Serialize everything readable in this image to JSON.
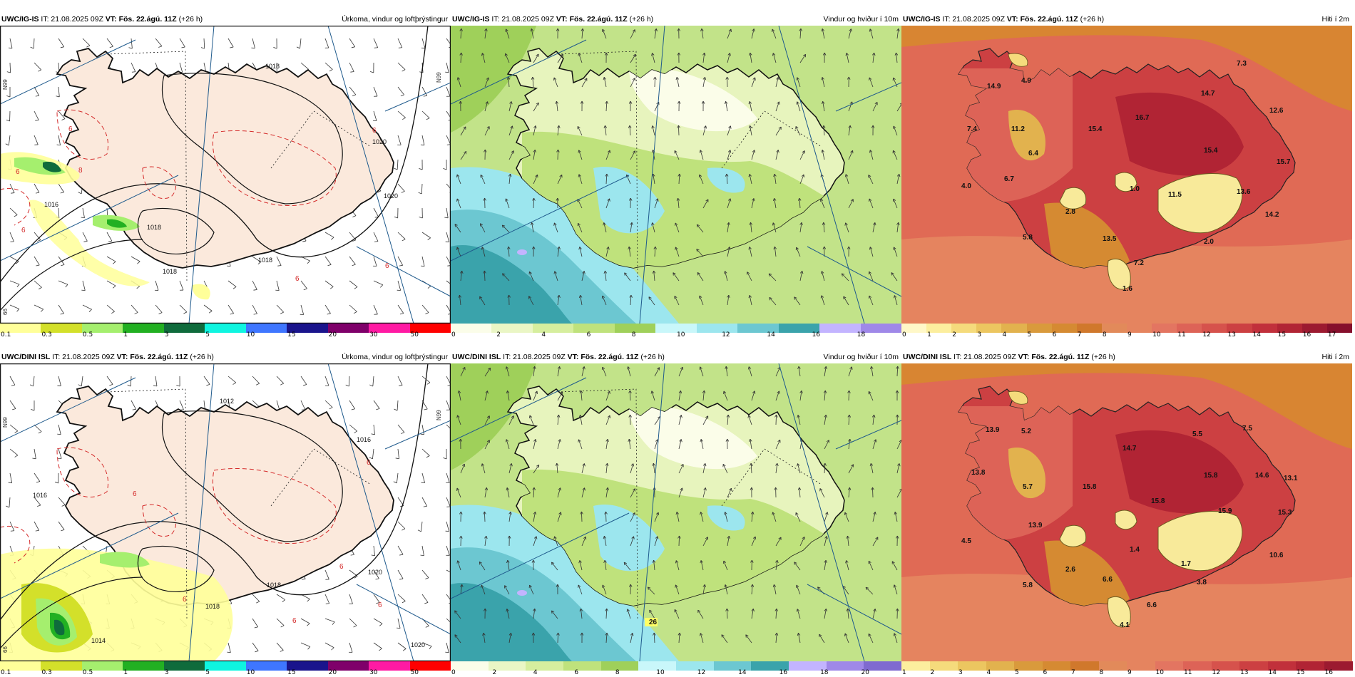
{
  "panels": [
    {
      "id": "p1",
      "type": "precip",
      "model": "UWC/IG-IS",
      "it_label": "IT:",
      "it_value": "21.08.2025 09Z",
      "vt_label": "VT:",
      "vt_value": "Fös. 22.ágú. 11Z",
      "lead": "(+26 h)",
      "field_title": "Úrkoma, vindur og loftþrýstingur",
      "colorbar": {
        "ticks": [
          "0.1",
          "0.3",
          "0.5",
          "1",
          "3",
          "5",
          "10",
          "15",
          "20",
          "30",
          "50"
        ],
        "colors": [
          "#ffff99",
          "#d3e02a",
          "#a5ef6e",
          "#22b022",
          "#0f6b3c",
          "#0ff5e0",
          "#3f76ff",
          "#1a148c",
          "#7f006a",
          "#ff1aa3",
          "#ff0000"
        ]
      },
      "isobar_labels": [
        "1018",
        "1016",
        "1018",
        "1018",
        "1018",
        "1020",
        "1020"
      ],
      "contour_labels": [
        "6",
        "6",
        "6",
        "8",
        "6",
        "6",
        "6"
      ],
      "lat_labels": [
        "N99",
        "N99",
        "66"
      ]
    },
    {
      "id": "p2",
      "type": "wind",
      "model": "UWC/IG-IS",
      "it_label": "IT:",
      "it_value": "21.08.2025 09Z",
      "vt_label": "VT:",
      "vt_value": "Fös. 22.ágú. 11Z",
      "lead": "(+26 h)",
      "field_title": "Vindur og hviður í 10m",
      "colorbar": {
        "ticks": [
          "0",
          "2",
          "4",
          "6",
          "8",
          "10",
          "12",
          "14",
          "16",
          "18"
        ],
        "colors": [
          "#fbfde9",
          "#eaf6c5",
          "#d6ee9e",
          "#bfe27c",
          "#9fd05a",
          "#c9f7fa",
          "#9ce6ee",
          "#6cc7d1",
          "#3aa3ab",
          "#c3b4ff",
          "#9f88e8"
        ]
      }
    },
    {
      "id": "p3",
      "type": "temp",
      "model": "UWC/IG-IS",
      "it_label": "IT:",
      "it_value": "21.08.2025 09Z",
      "vt_label": "VT:",
      "vt_value": "Fös. 22.ágú. 11Z",
      "lead": "(+26 h)",
      "field_title": "Hiti í 2m",
      "colorbar": {
        "ticks": [
          "0",
          "1",
          "2",
          "3",
          "4",
          "5",
          "6",
          "7",
          "8",
          "9",
          "10",
          "11",
          "12",
          "13",
          "14",
          "15",
          "16",
          "17"
        ],
        "colors": [
          "#fff8c8",
          "#fcee9e",
          "#f5db7c",
          "#ecc660",
          "#e2b24e",
          "#d99a3c",
          "#d58a32",
          "#d0782c",
          "#e28a5a",
          "#e5845f",
          "#e37561",
          "#dd6357",
          "#d6524c",
          "#cc4042",
          "#c1303b",
          "#b12434",
          "#9c1a30",
          "#860f2c"
        ]
      },
      "values": [
        "14.9",
        "4.9",
        "7.4",
        "11.2",
        "4.0",
        "6.7",
        "6.4",
        "15.4",
        "16.7",
        "14.7",
        "7.3",
        "12.6",
        "15.4",
        "15.7",
        "1.0",
        "11.5",
        "13.6",
        "2.8",
        "14.2",
        "5.8",
        "13.5",
        "2.0",
        "7.2",
        "1.6"
      ]
    },
    {
      "id": "p4",
      "type": "precip",
      "model": "UWC/DINI ISL",
      "it_label": "IT:",
      "it_value": "21.08.2025 09Z",
      "vt_label": "VT:",
      "vt_value": "Fös. 22.ágú. 11Z",
      "lead": "(+26 h)",
      "field_title": "Úrkoma, vindur og loftþrýstingur",
      "colorbar": {
        "ticks": [
          "0.1",
          "0.3",
          "0.5",
          "1",
          "3",
          "5",
          "10",
          "15",
          "20",
          "30",
          "50"
        ],
        "colors": [
          "#ffff99",
          "#d3e02a",
          "#a5ef6e",
          "#22b022",
          "#0f6b3c",
          "#0ff5e0",
          "#3f76ff",
          "#1a148c",
          "#7f006a",
          "#ff1aa3",
          "#ff0000"
        ]
      },
      "isobar_labels": [
        "1012",
        "1016",
        "1016",
        "1018",
        "1018",
        "1020",
        "1014",
        "1020"
      ],
      "contour_labels": [
        "6",
        "6",
        "6",
        "6",
        "6",
        "6"
      ],
      "lat_labels": [
        "N99",
        "N99",
        "66"
      ]
    },
    {
      "id": "p5",
      "type": "wind",
      "model": "UWC/DINI ISL",
      "it_label": "IT:",
      "it_value": "21.08.2025 09Z",
      "vt_label": "VT:",
      "vt_value": "Fös. 22.ágú. 11Z",
      "lead": "(+26 h)",
      "field_title": "Vindur og hviður í 10m",
      "colorbar": {
        "ticks": [
          "0",
          "2",
          "4",
          "6",
          "8",
          "10",
          "12",
          "14",
          "16",
          "18",
          "20"
        ],
        "colors": [
          "#fbfde9",
          "#eaf6c5",
          "#d6ee9e",
          "#bfe27c",
          "#9fd05a",
          "#c9f7fa",
          "#9ce6ee",
          "#6cc7d1",
          "#3aa3ab",
          "#c3b4ff",
          "#9f88e8",
          "#7f6ad0"
        ]
      },
      "values": [
        "26"
      ]
    },
    {
      "id": "p6",
      "type": "temp",
      "model": "UWC/DINI ISL",
      "it_label": "IT:",
      "it_value": "21.08.2025 09Z",
      "vt_label": "VT:",
      "vt_value": "Fös. 22.ágú. 11Z",
      "lead": "(+26 h)",
      "field_title": "Hiti í 2m",
      "colorbar": {
        "ticks": [
          "1",
          "2",
          "3",
          "4",
          "5",
          "6",
          "7",
          "8",
          "9",
          "10",
          "11",
          "12",
          "13",
          "14",
          "15",
          "16"
        ],
        "colors": [
          "#fcee9e",
          "#f5db7c",
          "#ecc660",
          "#e2b24e",
          "#d99a3c",
          "#d58a32",
          "#d0782c",
          "#e28a5a",
          "#e5845f",
          "#e37561",
          "#dd6357",
          "#d6524c",
          "#cc4042",
          "#c1303b",
          "#b12434",
          "#9c1a30"
        ]
      },
      "values": [
        "13.9",
        "5.2",
        "14.7",
        "5.5",
        "7.5",
        "13.8",
        "5.7",
        "15.8",
        "15.8",
        "15.8",
        "14.6",
        "13.1",
        "13.9",
        "15.9",
        "15.3",
        "4.5",
        "1.4",
        "2.6",
        "1.7",
        "10.6",
        "5.8",
        "6.6",
        "3.8",
        "6.6",
        "4.1"
      ]
    }
  ]
}
